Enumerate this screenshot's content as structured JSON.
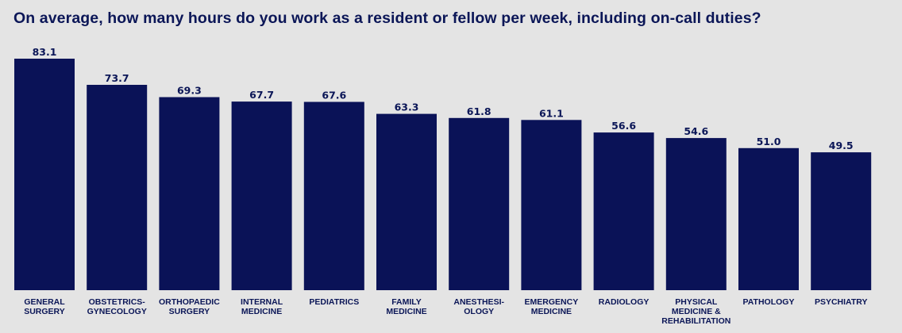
{
  "chart_data": {
    "type": "bar",
    "title": "On average, how many hours do you work as a resident or fellow per week, including on-call duties?",
    "xlabel": "",
    "ylabel": "",
    "ylim": [
      0,
      85
    ],
    "grid": false,
    "legend": "none",
    "bar_color": "#0a1257",
    "text_color": "#0b1657",
    "background": "#e4e4e4",
    "categories": [
      [
        "GENERAL",
        "SURGERY"
      ],
      [
        "OBSTETRICS-",
        "GYNECOLOGY"
      ],
      [
        "ORTHOPAEDIC",
        "SURGERY"
      ],
      [
        "INTERNAL",
        "MEDICINE"
      ],
      [
        "PEDIATRICS"
      ],
      [
        "FAMILY",
        "MEDICINE"
      ],
      [
        "ANESTHESI-",
        "OLOGY"
      ],
      [
        "EMERGENCY",
        "MEDICINE"
      ],
      [
        "RADIOLOGY"
      ],
      [
        "PHYSICAL",
        "MEDICINE &",
        "REHABILITATION"
      ],
      [
        "PATHOLOGY"
      ],
      [
        "PSYCHIATRY"
      ]
    ],
    "values": [
      83.1,
      73.7,
      69.3,
      67.7,
      67.6,
      63.3,
      61.8,
      61.1,
      56.6,
      54.6,
      51.0,
      49.5
    ],
    "value_labels": [
      "83.1",
      "73.7",
      "69.3",
      "67.7",
      "67.6",
      "63.3",
      "61.8",
      "61.1",
      "56.6",
      "54.6",
      "51.0",
      "49.5"
    ]
  }
}
